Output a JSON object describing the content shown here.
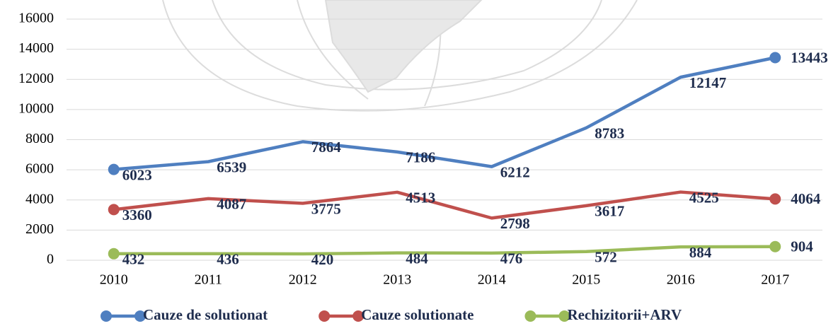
{
  "chart_data": {
    "type": "line",
    "categories": [
      "2010",
      "2011",
      "2012",
      "2013",
      "2014",
      "2015",
      "2016",
      "2017"
    ],
    "series": [
      {
        "name": "Cauze de solutionat",
        "color": "#4f7fc0",
        "values": [
          6023,
          6539,
          7864,
          7186,
          6212,
          8783,
          12147,
          13443
        ]
      },
      {
        "name": "Cauze solutionate",
        "color": "#c0504d",
        "values": [
          3360,
          4087,
          3775,
          4513,
          2798,
          3617,
          4525,
          4064
        ]
      },
      {
        "name": "Rechizitorii+ARV",
        "color": "#9bbb59",
        "values": [
          432,
          436,
          420,
          484,
          476,
          572,
          884,
          904
        ]
      }
    ],
    "ylim": [
      0,
      16000
    ],
    "yticks": [
      0,
      2000,
      4000,
      6000,
      8000,
      10000,
      12000,
      14000,
      16000
    ],
    "grid": true,
    "legend": "bottom"
  }
}
